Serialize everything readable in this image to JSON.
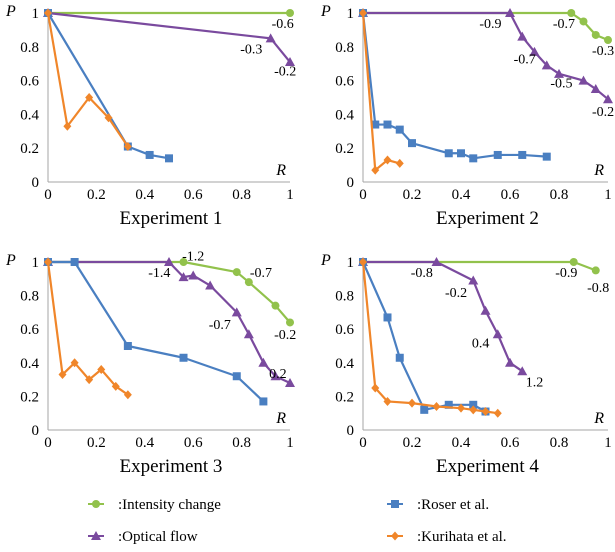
{
  "colors": {
    "intensity": "#92c24c",
    "roser": "#4a7fc1",
    "optical": "#7a4a9e",
    "kurihata": "#f0862a",
    "axis": "#a6a6a6"
  },
  "legend": [
    {
      "label": ":Intensity change",
      "series": "intensity",
      "marker": "circle"
    },
    {
      "label": ":Roser et al.",
      "series": "roser",
      "marker": "square"
    },
    {
      "label": ":Optical flow",
      "series": "optical",
      "marker": "triangle"
    },
    {
      "label": ":Kurihata et al.",
      "series": "kurihata",
      "marker": "diamond"
    }
  ],
  "chart_data": [
    {
      "type": "line",
      "title": "Experiment 1",
      "xlabel": "R",
      "ylabel": "P",
      "xlim": [
        0,
        1
      ],
      "ylim": [
        0,
        1
      ],
      "xticks": [
        "0",
        "0.2",
        "0.4",
        "0.6",
        "0.8",
        "1"
      ],
      "yticks": [
        "0",
        "0.2",
        "0.4",
        "0.6",
        "0.8",
        "1"
      ],
      "grid": false,
      "series": [
        {
          "key": "intensity",
          "x": [
            0,
            1.0
          ],
          "y": [
            1.0,
            1.0
          ]
        },
        {
          "key": "optical",
          "x": [
            0,
            0.92,
            1.0
          ],
          "y": [
            1.0,
            0.85,
            0.71
          ]
        },
        {
          "key": "roser",
          "x": [
            0,
            0.33,
            0.42,
            0.5
          ],
          "y": [
            1.0,
            0.21,
            0.16,
            0.14
          ]
        },
        {
          "key": "kurihata",
          "x": [
            0,
            0.08,
            0.17,
            0.25,
            0.33
          ],
          "y": [
            1.0,
            0.33,
            0.5,
            0.38,
            0.21
          ]
        }
      ],
      "annotations": [
        {
          "text": "-0.6",
          "x": 0.97,
          "y": 0.94
        },
        {
          "text": "-0.3",
          "x": 0.84,
          "y": 0.79
        },
        {
          "text": "-0.2",
          "x": 0.98,
          "y": 0.66
        }
      ]
    },
    {
      "type": "line",
      "title": "Experiment 2",
      "xlabel": "R",
      "ylabel": "P",
      "xlim": [
        0,
        1
      ],
      "ylim": [
        0,
        1
      ],
      "xticks": [
        "0",
        "0.2",
        "0.4",
        "0.6",
        "0.8",
        "1"
      ],
      "yticks": [
        "0",
        "0.2",
        "0.4",
        "0.6",
        "0.8",
        "1"
      ],
      "grid": false,
      "series": [
        {
          "key": "intensity",
          "x": [
            0,
            0.85,
            0.9,
            0.95,
            1.0
          ],
          "y": [
            1.0,
            1.0,
            0.95,
            0.87,
            0.84
          ]
        },
        {
          "key": "optical",
          "x": [
            0,
            0.6,
            0.65,
            0.7,
            0.75,
            0.8,
            0.9,
            0.95,
            1.0
          ],
          "y": [
            1.0,
            1.0,
            0.86,
            0.77,
            0.69,
            0.64,
            0.6,
            0.55,
            0.49
          ]
        },
        {
          "key": "roser",
          "x": [
            0,
            0.05,
            0.1,
            0.15,
            0.2,
            0.35,
            0.4,
            0.45,
            0.55,
            0.65,
            0.75
          ],
          "y": [
            1.0,
            0.34,
            0.34,
            0.31,
            0.23,
            0.17,
            0.17,
            0.14,
            0.16,
            0.16,
            0.15
          ]
        },
        {
          "key": "kurihata",
          "x": [
            0,
            0.05,
            0.1,
            0.15
          ],
          "y": [
            1.0,
            0.07,
            0.13,
            0.11
          ]
        }
      ],
      "annotations": [
        {
          "text": "-0.9",
          "x": 0.52,
          "y": 0.94
        },
        {
          "text": "-0.7",
          "x": 0.82,
          "y": 0.94
        },
        {
          "text": "-0.3",
          "x": 0.98,
          "y": 0.78
        },
        {
          "text": "-0.7",
          "x": 0.66,
          "y": 0.73
        },
        {
          "text": "-0.5",
          "x": 0.81,
          "y": 0.59
        },
        {
          "text": "-0.2",
          "x": 0.98,
          "y": 0.42
        }
      ]
    },
    {
      "type": "line",
      "title": "Experiment 3",
      "xlabel": "R",
      "ylabel": "P",
      "xlim": [
        0,
        1
      ],
      "ylim": [
        0,
        1
      ],
      "xticks": [
        "0",
        "0.2",
        "0.4",
        "0.6",
        "0.8",
        "1"
      ],
      "yticks": [
        "0",
        "0.2",
        "0.4",
        "0.6",
        "0.8",
        "1"
      ],
      "grid": false,
      "series": [
        {
          "key": "intensity",
          "x": [
            0,
            0.56,
            0.78,
            0.83,
            0.94,
            1.0
          ],
          "y": [
            1.0,
            1.0,
            0.94,
            0.88,
            0.74,
            0.64
          ]
        },
        {
          "key": "optical",
          "x": [
            0,
            0.5,
            0.56,
            0.6,
            0.67,
            0.78,
            0.83,
            0.89,
            0.94,
            1.0
          ],
          "y": [
            1.0,
            1.0,
            0.91,
            0.92,
            0.86,
            0.7,
            0.57,
            0.4,
            0.32,
            0.28
          ]
        },
        {
          "key": "roser",
          "x": [
            0,
            0.11,
            0.33,
            0.56,
            0.78,
            0.89
          ],
          "y": [
            1.0,
            1.0,
            0.5,
            0.43,
            0.32,
            0.17
          ]
        },
        {
          "key": "kurihata",
          "x": [
            0,
            0.06,
            0.11,
            0.17,
            0.22,
            0.28,
            0.33
          ],
          "y": [
            1.0,
            0.33,
            0.4,
            0.3,
            0.36,
            0.26,
            0.21
          ]
        }
      ],
      "annotations": [
        {
          "text": "-1.2",
          "x": 0.6,
          "y": 1.04
        },
        {
          "text": "-1.4",
          "x": 0.46,
          "y": 0.94
        },
        {
          "text": "-0.7",
          "x": 0.88,
          "y": 0.94
        },
        {
          "text": "-0.7",
          "x": 0.71,
          "y": 0.63
        },
        {
          "text": "0.2",
          "x": 0.95,
          "y": 0.34
        },
        {
          "text": "-0.2",
          "x": 0.98,
          "y": 0.57
        }
      ]
    },
    {
      "type": "line",
      "title": "Experiment 4",
      "xlabel": "R",
      "ylabel": "P",
      "xlim": [
        0,
        1
      ],
      "ylim": [
        0,
        1
      ],
      "xticks": [
        "0",
        "0.2",
        "0.4",
        "0.6",
        "0.8",
        "1"
      ],
      "yticks": [
        "0",
        "0.2",
        "0.4",
        "0.6",
        "0.8",
        "1"
      ],
      "grid": false,
      "series": [
        {
          "key": "intensity",
          "x": [
            0,
            0.86,
            0.95
          ],
          "y": [
            1.0,
            1.0,
            0.95
          ]
        },
        {
          "key": "optical",
          "x": [
            0,
            0.3,
            0.45,
            0.5,
            0.55,
            0.6,
            0.65
          ],
          "y": [
            1.0,
            1.0,
            0.89,
            0.71,
            0.57,
            0.4,
            0.35
          ]
        },
        {
          "key": "roser",
          "x": [
            0,
            0.1,
            0.15,
            0.25,
            0.35,
            0.45,
            0.5
          ],
          "y": [
            1.0,
            0.67,
            0.43,
            0.12,
            0.15,
            0.15,
            0.11
          ]
        },
        {
          "key": "kurihata",
          "x": [
            0,
            0.05,
            0.1,
            0.2,
            0.3,
            0.4,
            0.45,
            0.5,
            0.55
          ],
          "y": [
            1.0,
            0.25,
            0.17,
            0.16,
            0.14,
            0.13,
            0.12,
            0.11,
            0.1
          ]
        }
      ],
      "annotations": [
        {
          "text": "-0.8",
          "x": 0.24,
          "y": 0.94
        },
        {
          "text": "-0.9",
          "x": 0.83,
          "y": 0.94
        },
        {
          "text": "-0.8",
          "x": 0.96,
          "y": 0.85
        },
        {
          "text": "-0.2",
          "x": 0.38,
          "y": 0.82
        },
        {
          "text": "0.4",
          "x": 0.48,
          "y": 0.52
        },
        {
          "text": "1.2",
          "x": 0.7,
          "y": 0.29
        }
      ]
    }
  ]
}
